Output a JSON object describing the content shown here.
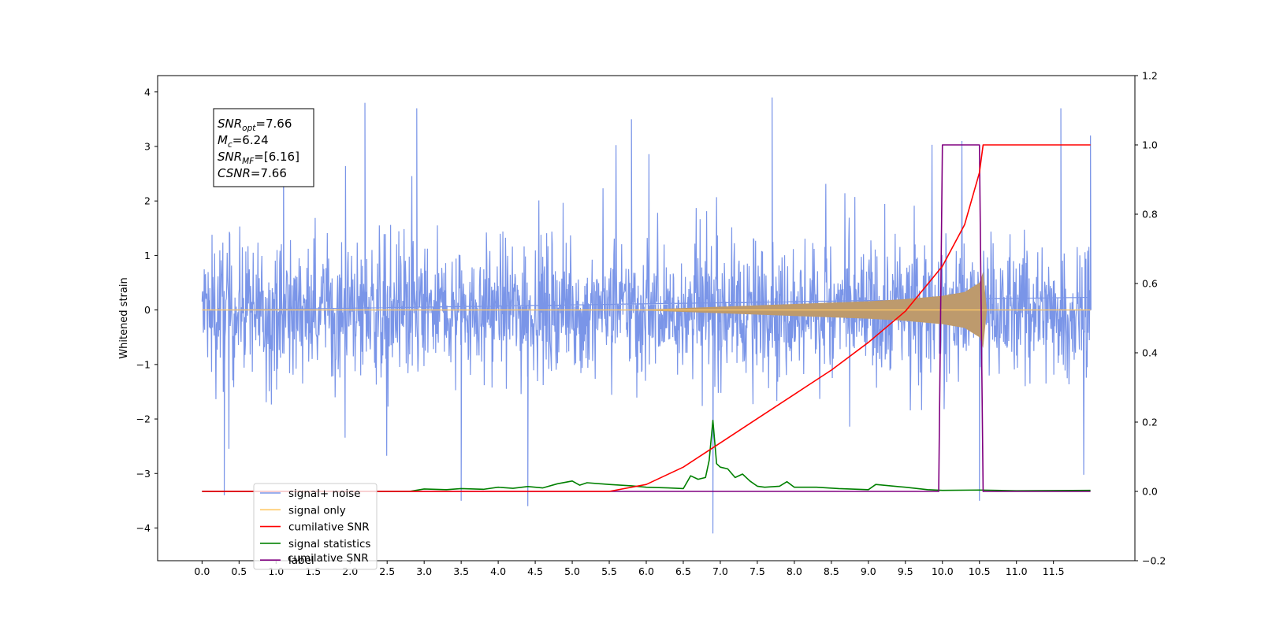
{
  "chart_data": {
    "type": "line",
    "x_range": [
      -0.6,
      12.6
    ],
    "x_ticks": [
      "0.0",
      "0.5",
      "1.0",
      "1.5",
      "2.0",
      "2.5",
      "3.0",
      "3.5",
      "4.0",
      "4.5",
      "5.0",
      "5.5",
      "6.0",
      "6.5",
      "7.0",
      "7.5",
      "8.0",
      "8.5",
      "9.0",
      "9.5",
      "10.0",
      "10.5",
      "11.0",
      "11.5"
    ],
    "y_left": {
      "label": "Whitened strain",
      "range": [
        -4.6,
        4.3
      ],
      "ticks": [
        "−4",
        "−3",
        "−2",
        "−1",
        "0",
        "1",
        "2",
        "3",
        "4"
      ]
    },
    "y_right": {
      "label": "",
      "range": [
        -0.2,
        1.2
      ],
      "ticks": [
        "−0.2",
        "0.0",
        "0.2",
        "0.4",
        "0.6",
        "0.8",
        "1.0",
        "1.2"
      ]
    },
    "annotation": {
      "lines": [
        {
          "base": "SNR",
          "sub": "opt",
          "value": "=7.66"
        },
        {
          "base": "M",
          "sub": "c",
          "value": "=6.24"
        },
        {
          "base": "SNR",
          "sub": "MF",
          "value": "=[6.16]"
        },
        {
          "base": "CSNR",
          "sub": "",
          "value": "=7.66"
        }
      ]
    },
    "legend": {
      "placement": "lower-left",
      "entries": [
        {
          "label": "signal+ noise",
          "color": "#7a95e8"
        },
        {
          "label": "signal only",
          "color": "#ffc966"
        },
        {
          "label": "cumilative SNR",
          "color": "#ff0000"
        },
        {
          "label": "signal statistics",
          "color": "#008000"
        },
        {
          "label": "label",
          "color": "#800080"
        }
      ],
      "ghost_text": "cumilative SNR"
    },
    "series": [
      {
        "name": "signal+ noise",
        "axis": "left",
        "color": "#7a95e8",
        "description": "noisy whitened strain, amplitude about ±2.5 with spikes up to 3.9 and down to −4.1",
        "x_span": [
          0.0,
          12.0
        ],
        "envelope": 2.5,
        "spikes": [
          {
            "x": 0.3,
            "y": -3.4
          },
          {
            "x": 1.1,
            "y": 3.2
          },
          {
            "x": 2.2,
            "y": 3.8
          },
          {
            "x": 2.9,
            "y": 3.7
          },
          {
            "x": 3.5,
            "y": -3.5
          },
          {
            "x": 4.4,
            "y": -3.6
          },
          {
            "x": 5.8,
            "y": 3.5
          },
          {
            "x": 6.9,
            "y": -4.1
          },
          {
            "x": 7.7,
            "y": 3.9
          },
          {
            "x": 10.5,
            "y": -3.5
          },
          {
            "x": 11.6,
            "y": 3.7
          },
          {
            "x": 12.0,
            "y": 3.2
          }
        ]
      },
      {
        "name": "signal only",
        "axis": "left",
        "color": "#ffc966",
        "description": "chirp signal, amplitude grows from 0 near x=6 to about 0.7 at x=10.55 then drops to 0",
        "x": [
          0,
          5.5,
          6.0,
          7.0,
          8.0,
          9.0,
          9.5,
          10.0,
          10.3,
          10.5,
          10.55,
          10.6,
          12.0
        ],
        "amplitude": [
          0,
          0,
          0.01,
          0.06,
          0.11,
          0.16,
          0.2,
          0.26,
          0.33,
          0.5,
          0.7,
          0,
          0
        ]
      },
      {
        "name": "cumilative SNR",
        "axis": "right",
        "color": "#ff0000",
        "x": [
          0.0,
          5.5,
          6.0,
          6.5,
          7.0,
          7.5,
          8.0,
          8.5,
          9.0,
          9.5,
          10.0,
          10.3,
          10.5,
          10.55,
          10.6,
          12.0
        ],
        "y": [
          0.0,
          0.0,
          0.02,
          0.07,
          0.14,
          0.21,
          0.28,
          0.35,
          0.43,
          0.52,
          0.65,
          0.77,
          0.92,
          1.0,
          1.0,
          1.0
        ]
      },
      {
        "name": "signal statistics",
        "axis": "right",
        "color": "#008000",
        "x": [
          0.0,
          2.8,
          3.0,
          3.3,
          3.5,
          3.8,
          4.0,
          4.2,
          4.4,
          4.6,
          4.8,
          5.0,
          5.1,
          5.2,
          5.5,
          5.8,
          6.0,
          6.3,
          6.5,
          6.6,
          6.7,
          6.8,
          6.85,
          6.9,
          6.95,
          7.0,
          7.1,
          7.2,
          7.3,
          7.4,
          7.5,
          7.6,
          7.8,
          7.9,
          8.0,
          8.3,
          8.6,
          9.0,
          9.1,
          9.5,
          9.8,
          10.0,
          10.5,
          11.0,
          12.0
        ],
        "y": [
          0.0,
          0.0,
          0.007,
          0.005,
          0.008,
          0.006,
          0.012,
          0.009,
          0.014,
          0.01,
          0.022,
          0.03,
          0.018,
          0.025,
          0.02,
          0.016,
          0.012,
          0.01,
          0.008,
          0.045,
          0.035,
          0.04,
          0.09,
          0.205,
          0.08,
          0.07,
          0.065,
          0.04,
          0.05,
          0.03,
          0.015,
          0.012,
          0.015,
          0.028,
          0.012,
          0.012,
          0.008,
          0.005,
          0.02,
          0.012,
          0.005,
          0.003,
          0.004,
          0.002,
          0.003
        ]
      },
      {
        "name": "label",
        "axis": "right",
        "color": "#800080",
        "x": [
          0.0,
          9.95,
          10.0,
          10.5,
          10.55,
          12.0
        ],
        "y": [
          0.0,
          0.0,
          1.0,
          1.0,
          0.0,
          0.0
        ]
      }
    ]
  }
}
